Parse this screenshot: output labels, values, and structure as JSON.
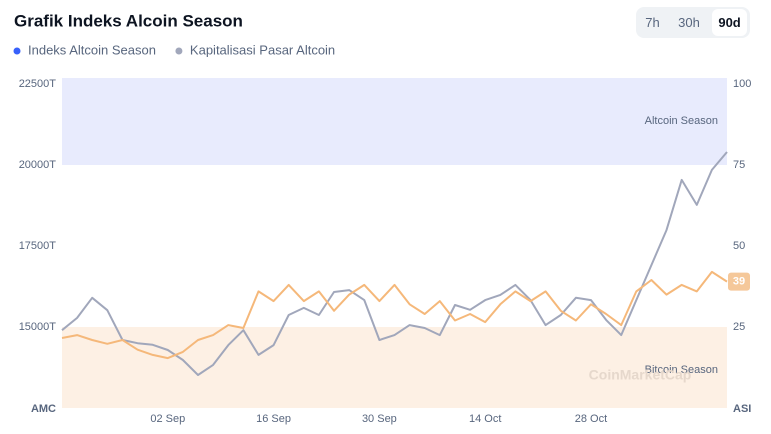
{
  "chart_data": {
    "type": "line",
    "title": "Grafik Indeks Alcoin Season",
    "tabs": [
      "7h",
      "30h",
      "90d"
    ],
    "selected_tab": 2,
    "y_axis_label": "AMC",
    "y2_axis_label": "ASI",
    "watermark": "CoinMarketCap",
    "categories": [
      null,
      null,
      null,
      null,
      null,
      null,
      null,
      "02 Sep",
      null,
      null,
      null,
      null,
      null,
      null,
      "16 Sep",
      null,
      null,
      null,
      null,
      null,
      null,
      "30 Sep",
      null,
      null,
      null,
      null,
      null,
      null,
      "14 Oct",
      null,
      null,
      null,
      null,
      null,
      null,
      "28 Oct",
      null,
      null,
      null,
      null,
      null,
      null,
      null,
      null,
      null
    ],
    "series": [
      {
        "name": "Indeks Altcoin Season",
        "color": "#f5b87a",
        "legend_color": "#3861fb",
        "axis": "y2",
        "values": [
          21.6,
          22.5,
          21,
          19.8,
          21,
          18,
          16.4,
          15.4,
          17.3,
          21,
          22.5,
          25.6,
          24.7,
          36,
          33,
          38,
          33,
          36,
          30,
          35,
          38,
          33,
          38,
          32,
          29,
          33,
          27,
          29,
          26.5,
          32,
          36,
          33,
          36,
          30,
          27,
          32,
          29,
          25.6,
          36,
          39.5,
          35,
          38,
          36,
          42,
          39
        ]
      },
      {
        "name": "Kapitalisasi Pasar Altcoin",
        "color": "#a1a7bb",
        "legend_color": "#a1a7bb",
        "values": [
          14900,
          15280,
          15900,
          15520,
          14600,
          14500,
          14450,
          14290,
          13980,
          13520,
          13830,
          14440,
          14900,
          14140,
          14440,
          15370,
          15590,
          15370,
          16080,
          16140,
          15830,
          14600,
          14750,
          15060,
          14970,
          14750,
          15680,
          15530,
          15830,
          15990,
          16300,
          15830,
          15060,
          15370,
          15900,
          15830,
          15220,
          14750,
          15830,
          16910,
          17990,
          19540,
          18770,
          19850,
          20400
        ]
      }
    ],
    "ylim": [
      12500,
      22500
    ],
    "yticks": [
      {
        "value": 15000,
        "label": "15000T"
      },
      {
        "value": 17500,
        "label": "17500T"
      },
      {
        "value": 20000,
        "label": "20000T"
      },
      {
        "value": 22500,
        "label": "22500T"
      }
    ],
    "y2lim": [
      0,
      100
    ],
    "y2ticks": [
      25,
      50,
      75,
      100
    ],
    "bands": [
      {
        "label": "Altcoin Season",
        "from": 75,
        "to": 100,
        "color": "#e8ebfd"
      },
      {
        "label": "Bitcoin Season",
        "from": 0,
        "to": 25,
        "color": "#fdf0e4"
      }
    ],
    "last_value_color": "#f5c89a"
  }
}
